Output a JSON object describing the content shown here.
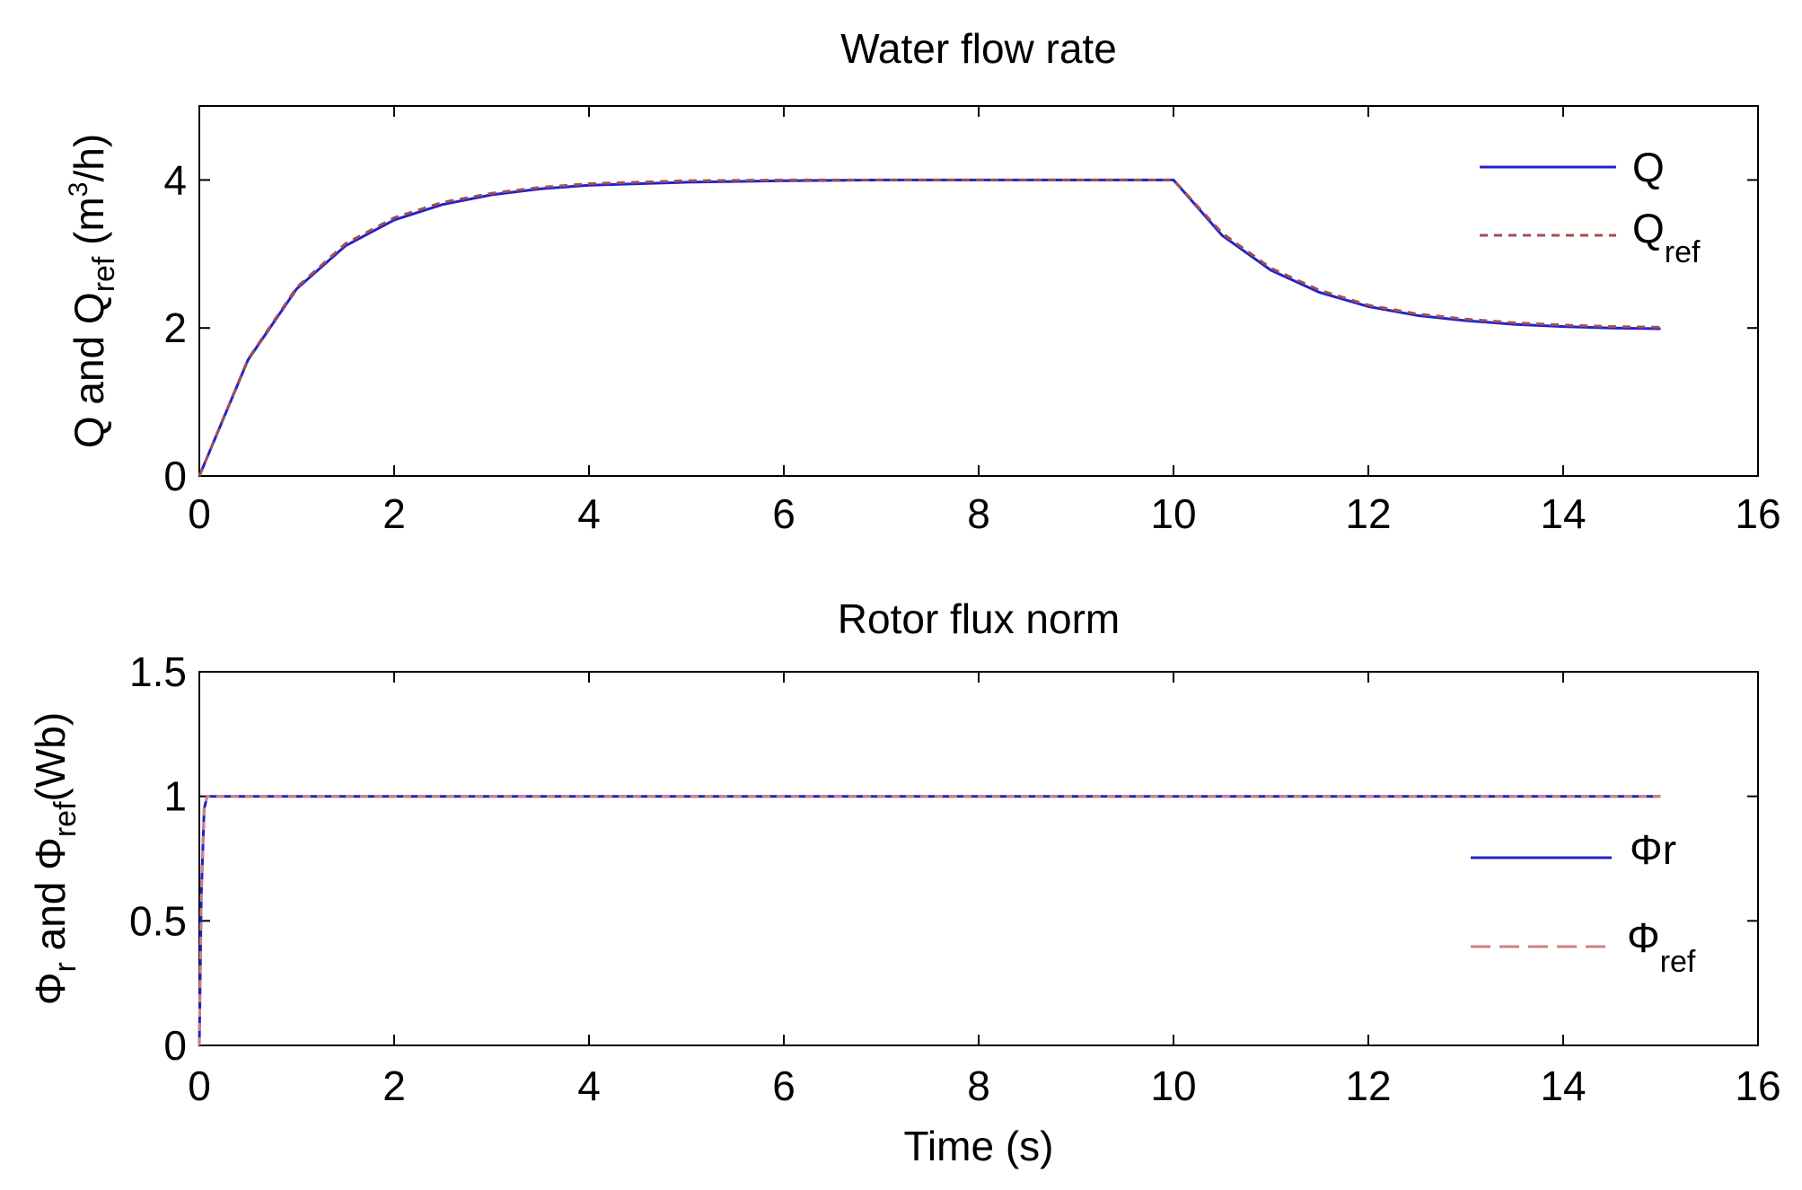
{
  "chart_data": [
    {
      "type": "line",
      "title": "Water flow rate",
      "xlabel": "",
      "ylabel": {
        "main": "Q and Q",
        "sub": "ref",
        "unit_pre": " (m",
        "unit_sup": "3",
        "unit_post": "/h)"
      },
      "xlim": [
        0,
        16
      ],
      "ylim": [
        0,
        5
      ],
      "xticks": [
        0,
        2,
        4,
        6,
        8,
        10,
        12,
        14,
        16
      ],
      "xtick_labels": [
        "0",
        "2",
        "4",
        "6",
        "8",
        "10",
        "12",
        "14",
        "16"
      ],
      "yticks": [
        0,
        2,
        4
      ],
      "ytick_labels": [
        "0",
        "2",
        "4"
      ],
      "grid": false,
      "legend_position": "top-right",
      "series": [
        {
          "name": "Q",
          "label_main": "Q",
          "label_sub": "",
          "color": "#2222cc",
          "style": "solid",
          "x": [
            0,
            0.5,
            1,
            1.5,
            2,
            2.5,
            3,
            3.5,
            4,
            5,
            6,
            7,
            8,
            9,
            10,
            10.5,
            11,
            11.5,
            12,
            12.5,
            13,
            13.5,
            14,
            14.5,
            15
          ],
          "y": [
            0,
            1.57,
            2.53,
            3.11,
            3.46,
            3.67,
            3.8,
            3.88,
            3.93,
            3.97,
            3.99,
            4.0,
            4.0,
            4.0,
            4.0,
            3.25,
            2.78,
            2.48,
            2.29,
            2.17,
            2.1,
            2.05,
            2.02,
            2.0,
            1.99
          ]
        },
        {
          "name": "Qref",
          "label_main": "Q",
          "label_sub": "ref",
          "color": "#a05050",
          "style": "dashed",
          "x": [
            0,
            0.5,
            1,
            1.5,
            2,
            2.5,
            3,
            3.5,
            4,
            5,
            6,
            7,
            8,
            9,
            10,
            10.5,
            11,
            11.5,
            12,
            12.5,
            13,
            13.5,
            14,
            14.5,
            15
          ],
          "y": [
            0,
            1.58,
            2.55,
            3.14,
            3.49,
            3.7,
            3.82,
            3.9,
            3.95,
            3.99,
            4.0,
            4.0,
            4.0,
            4.0,
            4.0,
            3.28,
            2.81,
            2.51,
            2.31,
            2.19,
            2.12,
            2.07,
            2.04,
            2.02,
            2.01
          ]
        }
      ]
    },
    {
      "type": "line",
      "title": "Rotor flux norm",
      "xlabel": "Time (s)",
      "ylabel": {
        "p1": "Φ",
        "p1_sub": "r",
        "p2": " and  Φ",
        "p2_sub": "ref",
        "p3": "(Wb)"
      },
      "xlim": [
        0,
        16
      ],
      "ylim": [
        0,
        1.5
      ],
      "xticks": [
        0,
        2,
        4,
        6,
        8,
        10,
        12,
        14,
        16
      ],
      "xtick_labels": [
        "0",
        "2",
        "4",
        "6",
        "8",
        "10",
        "12",
        "14",
        "16"
      ],
      "yticks": [
        0,
        0.5,
        1,
        1.5
      ],
      "ytick_labels": [
        "0",
        "0.5",
        "1",
        "1.5"
      ],
      "grid": false,
      "legend_position": "right",
      "series": [
        {
          "name": "Φr",
          "label_main": "Φr",
          "label_sub": "",
          "color": "#2222cc",
          "style": "solid",
          "x": [
            0,
            0.02,
            0.05,
            0.08,
            0.1,
            15
          ],
          "y": [
            0,
            0.6,
            0.95,
            1.0,
            1.0,
            1.0
          ]
        },
        {
          "name": "Φref",
          "label_main": "Φ",
          "label_sub": "ref",
          "color": "#d08080",
          "style": "dashed",
          "x": [
            0,
            0.02,
            0.05,
            0.08,
            0.1,
            15
          ],
          "y": [
            0,
            0.6,
            0.95,
            1.0,
            1.0,
            1.0
          ]
        }
      ]
    }
  ]
}
